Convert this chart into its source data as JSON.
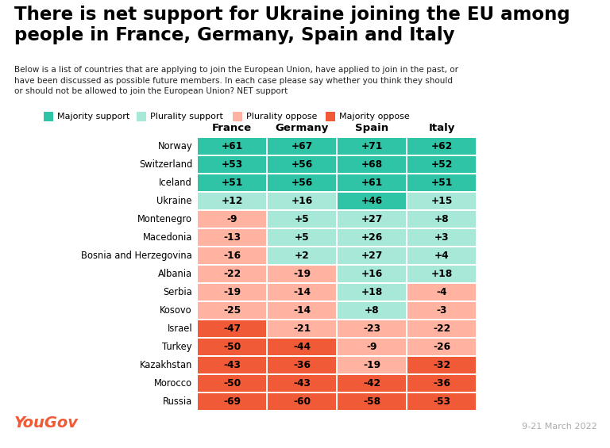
{
  "title": "There is net support for Ukraine joining the EU among\npeople in France, Germany, Spain and Italy",
  "subtitle": "Below is a list of countries that are applying to join the European Union, have applied to join in the past, or\nhave been discussed as possible future members. In each case please say whether you think they should\nor should not be allowed to join the European Union? NET support",
  "columns": [
    "France",
    "Germany",
    "Spain",
    "Italy"
  ],
  "rows": [
    "Norway",
    "Switzerland",
    "Iceland",
    "Ukraine",
    "Montenegro",
    "Macedonia",
    "Bosnia and Herzegovina",
    "Albania",
    "Serbia",
    "Kosovo",
    "Israel",
    "Turkey",
    "Kazakhstan",
    "Morocco",
    "Russia"
  ],
  "values": [
    [
      61,
      67,
      71,
      62
    ],
    [
      53,
      56,
      68,
      52
    ],
    [
      51,
      56,
      61,
      51
    ],
    [
      12,
      16,
      46,
      15
    ],
    [
      -9,
      5,
      27,
      8
    ],
    [
      -13,
      5,
      26,
      3
    ],
    [
      -16,
      2,
      27,
      4
    ],
    [
      -22,
      -19,
      16,
      18
    ],
    [
      -19,
      -14,
      18,
      -4
    ],
    [
      -25,
      -14,
      8,
      -3
    ],
    [
      -47,
      -21,
      -23,
      -22
    ],
    [
      -50,
      -44,
      -9,
      -26
    ],
    [
      -43,
      -36,
      -19,
      -32
    ],
    [
      -50,
      -43,
      -42,
      -36
    ],
    [
      -69,
      -60,
      -58,
      -53
    ]
  ],
  "color_majority_support": "#2ec4a5",
  "color_plurality_support": "#a8e8d8",
  "color_plurality_oppose": "#ffb3a0",
  "color_majority_oppose": "#f05a36",
  "yougov_color": "#f05a36",
  "date_text": "9-21 March 2022",
  "footer_yougov": "YouGov"
}
